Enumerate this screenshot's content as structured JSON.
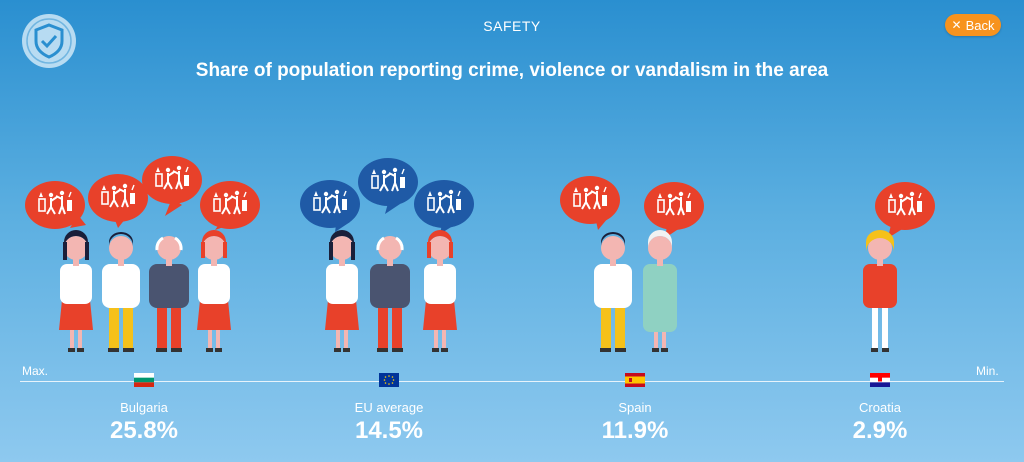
{
  "header": {
    "section": "SAFETY",
    "back_label": "Back",
    "title": "Share of population reporting crime, violence or vandalism in the area"
  },
  "axis": {
    "max_label": "Max.",
    "min_label": "Min."
  },
  "colors": {
    "background_top": "#2a8fd0",
    "bubble_red": "#e8412a",
    "bubble_blue": "#1f5aa6",
    "accent_orange": "#f7931e"
  },
  "icons": [
    "shield-check-icon",
    "close-icon"
  ],
  "groups": [
    {
      "name": "Bulgaria",
      "value": "25.8%",
      "flag": "bulgaria-flag-icon"
    },
    {
      "name": "EU average",
      "value": "14.5%",
      "flag": "eu-flag-icon"
    },
    {
      "name": "Spain",
      "value": "11.9%",
      "flag": "spain-flag-icon"
    },
    {
      "name": "Croatia",
      "value": "2.9%",
      "flag": "croatia-flag-icon"
    }
  ]
}
